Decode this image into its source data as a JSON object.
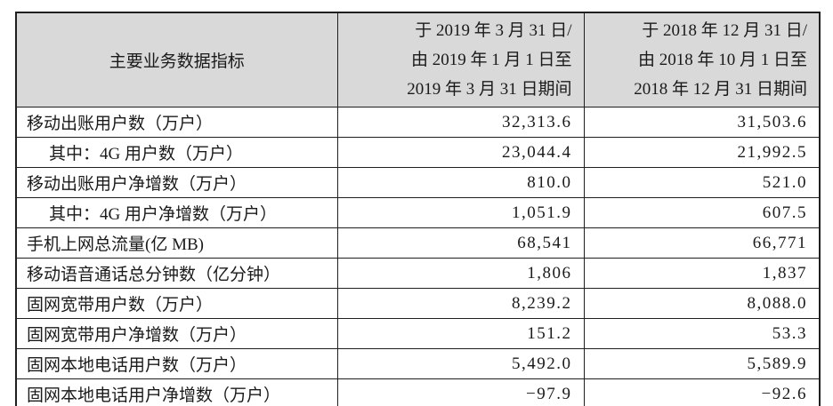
{
  "table": {
    "header": {
      "indicator_label": "主要业务数据指标",
      "period_2019": {
        "lines": [
          "于 2019 年 3 月 31 日/",
          "由 2019 年 1 月 1 日至",
          "2019 年 3 月 31 日期间"
        ]
      },
      "period_2018": {
        "lines": [
          "于 2018 年 12 月 31 日/",
          "由 2018 年 10 月 1 日至",
          "2018 年 12 月 31 日期间"
        ]
      }
    },
    "rows": [
      {
        "label": "移动出账用户数（万户）",
        "indent": false,
        "v2019": "32,313.6",
        "v2018": "31,503.6"
      },
      {
        "label": "其中：4G 用户数（万户）",
        "indent": true,
        "v2019": "23,044.4",
        "v2018": "21,992.5"
      },
      {
        "label": "移动出账用户净增数（万户）",
        "indent": false,
        "v2019": "810.0",
        "v2018": "521.0"
      },
      {
        "label": "其中：4G 用户净增数（万户）",
        "indent": true,
        "v2019": "1,051.9",
        "v2018": "607.5"
      },
      {
        "label": "手机上网总流量(亿 MB)",
        "indent": false,
        "v2019": "68,541",
        "v2018": "66,771"
      },
      {
        "label": "移动语音通话总分钟数（亿分钟）",
        "indent": false,
        "v2019": "1,806",
        "v2018": "1,837"
      },
      {
        "label": "固网宽带用户数（万户）",
        "indent": false,
        "v2019": "8,239.2",
        "v2018": "8,088.0"
      },
      {
        "label": "固网宽带用户净增数（万户）",
        "indent": false,
        "v2019": "151.2",
        "v2018": "53.3"
      },
      {
        "label": "固网本地电话用户数（万户）",
        "indent": false,
        "v2019": "5,492.0",
        "v2018": "5,589.9"
      },
      {
        "label": "固网本地电话用户净增数（万户）",
        "indent": false,
        "v2019": "−97.9",
        "v2018": "−92.6"
      }
    ],
    "colors": {
      "header_bg": "#d9d9d9",
      "border": "#1f1f1f",
      "text": "#1a1a1a"
    }
  }
}
